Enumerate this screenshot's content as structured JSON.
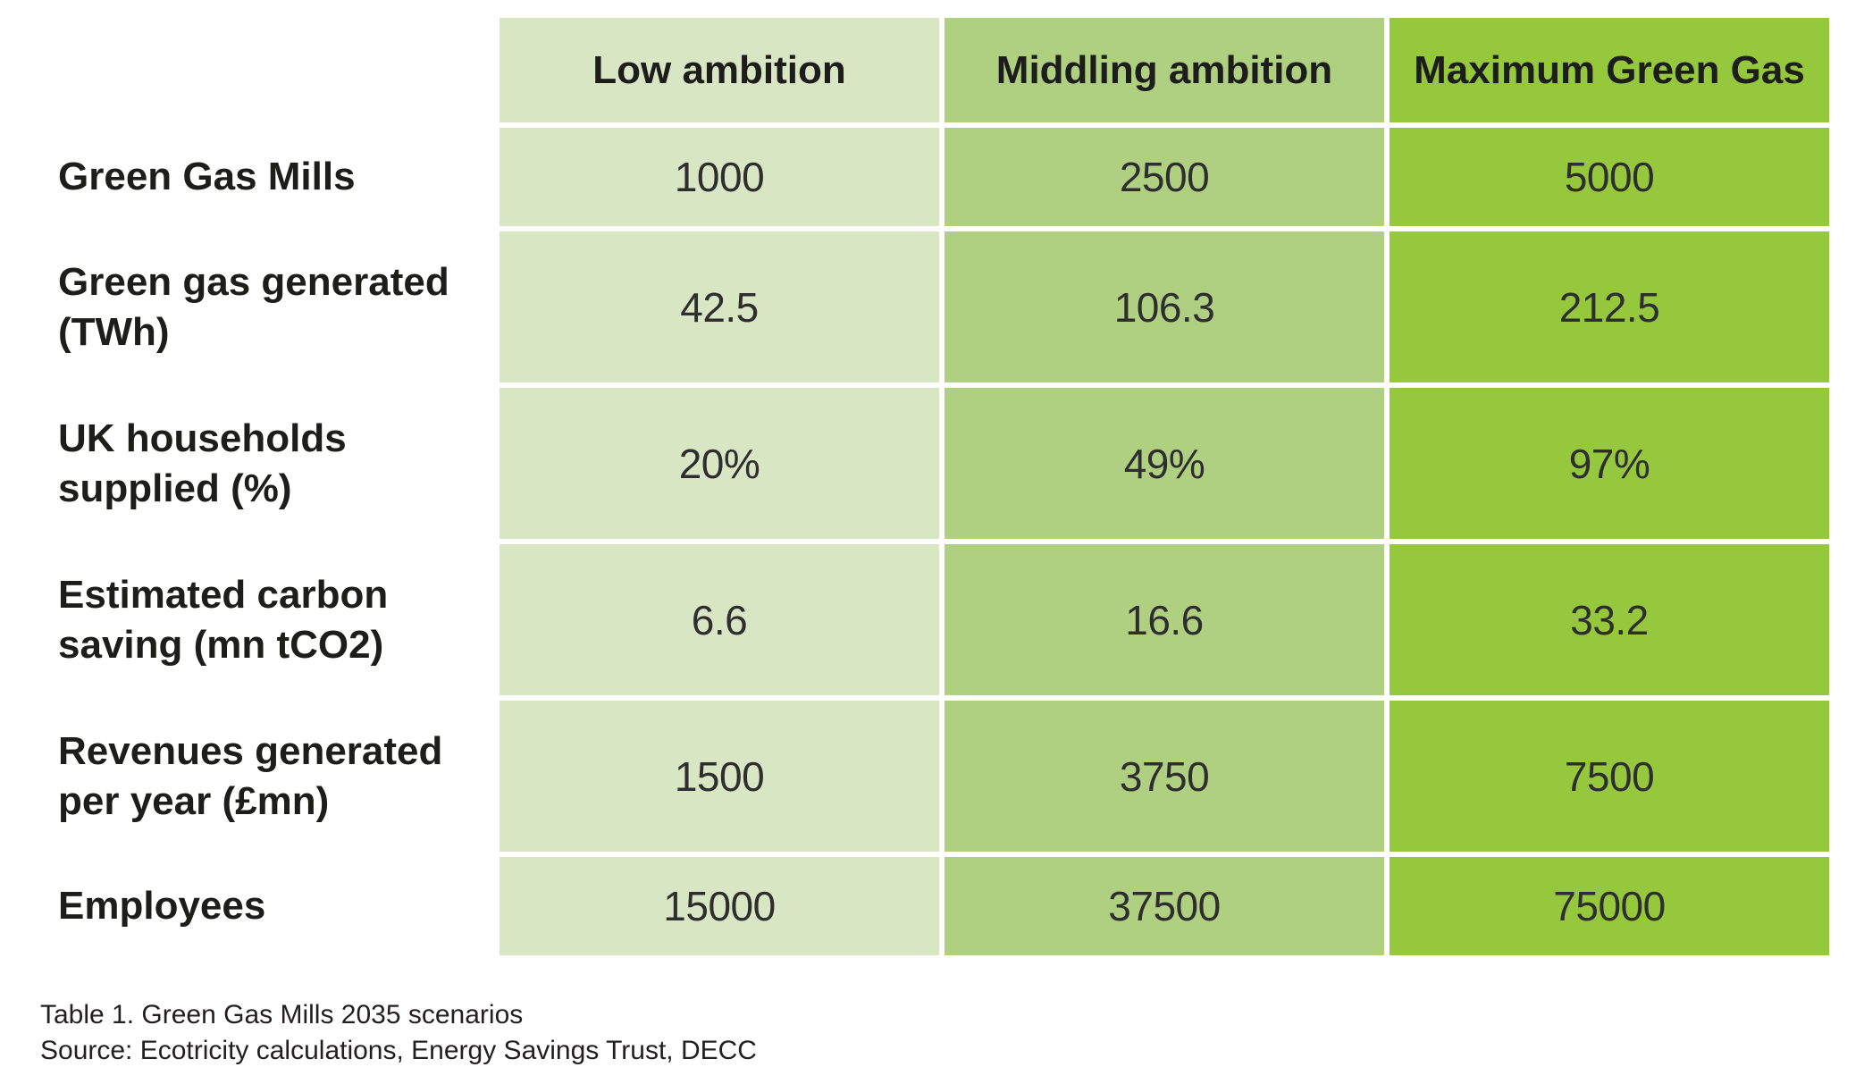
{
  "table": {
    "columns": [
      {
        "label": "Low ambition",
        "color": "#d9e6c4"
      },
      {
        "label": "Middling ambition",
        "color": "#afd080"
      },
      {
        "label": "Maximum Green Gas",
        "color": "#95c83c"
      }
    ],
    "rows": [
      {
        "label": "Green Gas Mills",
        "values": [
          "1000",
          "2500",
          "5000"
        ]
      },
      {
        "label": "Green gas generated (TWh)",
        "values": [
          "42.5",
          "106.3",
          "212.5"
        ]
      },
      {
        "label": "UK households supplied (%)",
        "values": [
          "20%",
          "49%",
          "97%"
        ]
      },
      {
        "label": "Estimated carbon saving (mn tCO2)",
        "values": [
          "6.6",
          "16.6",
          "33.2"
        ]
      },
      {
        "label": "Revenues generated per year (£mn)",
        "values": [
          "1500",
          "3750",
          "7500"
        ]
      },
      {
        "label": "Employees",
        "values": [
          "15000",
          "37500",
          "75000"
        ]
      }
    ]
  },
  "caption": {
    "title": "Table 1. Green Gas Mills 2035 scenarios",
    "source": "Source: Ecotricity calculations, Energy Savings Trust, DECC"
  },
  "colors": {
    "text_dark": "#1d1d1b",
    "value_text": "#2e2e2e",
    "background": "#ffffff"
  }
}
